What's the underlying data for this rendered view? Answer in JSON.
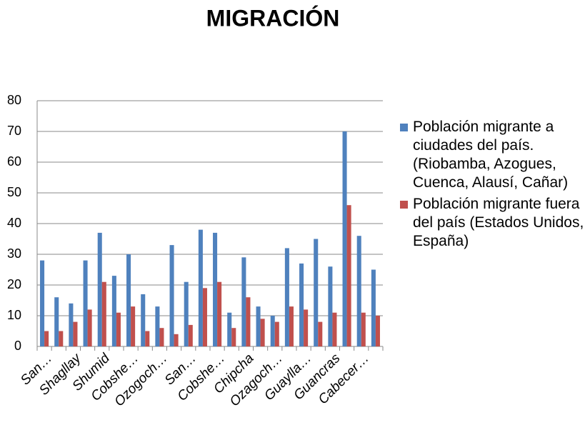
{
  "chart_data": {
    "type": "bar",
    "title": "MIGRACIÓN",
    "categories": [
      "San…",
      null,
      "Shagllay",
      null,
      "Shumid",
      null,
      "Cobshe…",
      null,
      "Ozogoch…",
      null,
      "San…",
      null,
      "Cobshe…",
      null,
      "Chipcha",
      null,
      "Ozagoch…",
      null,
      "Guaylla…",
      null,
      "Guancras",
      null,
      "Cabecer…",
      null
    ],
    "series": [
      {
        "name": "Población migrante a ciudades del país.(Riobamba, Azogues, Cuenca, Alausí, Cañar)",
        "color": "#4f81bd",
        "values": [
          28,
          16,
          14,
          28,
          37,
          23,
          30,
          17,
          13,
          33,
          21,
          38,
          37,
          11,
          29,
          13,
          10,
          32,
          27,
          35,
          26,
          70,
          36,
          25
        ]
      },
      {
        "name": "Población migrante fuera del país (Estados Unidos, España)",
        "color": "#c0504d",
        "values": [
          5,
          5,
          8,
          12,
          21,
          11,
          13,
          5,
          6,
          4,
          7,
          19,
          21,
          6,
          16,
          9,
          8,
          13,
          12,
          8,
          11,
          46,
          11,
          10
        ]
      }
    ],
    "ylim": [
      0,
      80
    ],
    "yticks": [
      0,
      10,
      20,
      30,
      40,
      50,
      60,
      70,
      80
    ],
    "grid": true,
    "legend": "right"
  }
}
